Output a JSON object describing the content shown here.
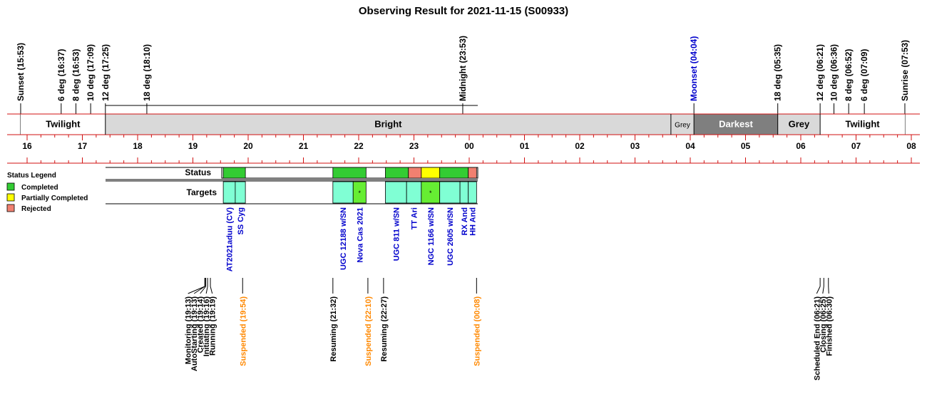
{
  "chart_data": {
    "type": "timeline",
    "title": "Observing Result for 2021-11-15 (S00933)",
    "axis": {
      "tick_labels": [
        "16",
        "17",
        "18",
        "19",
        "20",
        "21",
        "22",
        "23",
        "00",
        "01",
        "02",
        "03",
        "04",
        "05",
        "06",
        "07",
        "08"
      ],
      "start_hour": 16,
      "end_hour": 32
    },
    "events_top": [
      {
        "label": "Sunset (15:53)",
        "time": "15:53",
        "color": "#000000"
      },
      {
        "label": "6 deg (16:37)",
        "time": "16:37",
        "color": "#000000"
      },
      {
        "label": "8 deg (16:53)",
        "time": "16:53",
        "color": "#000000"
      },
      {
        "label": "10 deg (17:09)",
        "time": "17:09",
        "color": "#000000"
      },
      {
        "label": "12 deg (17:25)",
        "time": "17:25",
        "color": "#000000"
      },
      {
        "label": "18 deg (18:10)",
        "time": "18:10",
        "color": "#000000"
      },
      {
        "label": "Midnight (23:53)",
        "time": "23:53",
        "color": "#000000"
      },
      {
        "label": "Moonset (04:04)",
        "time": "04:04",
        "color": "#0000cc"
      },
      {
        "label": "18 deg (05:35)",
        "time": "05:35",
        "color": "#000000"
      },
      {
        "label": "12 deg (06:21)",
        "time": "06:21",
        "color": "#000000"
      },
      {
        "label": "10 deg (06:36)",
        "time": "06:36",
        "color": "#000000"
      },
      {
        "label": "8 deg (06:52)",
        "time": "06:52",
        "color": "#000000"
      },
      {
        "label": "6 deg (07:09)",
        "time": "07:09",
        "color": "#000000"
      },
      {
        "label": "Sunrise (07:53)",
        "time": "07:53",
        "color": "#000000"
      }
    ],
    "sky_bands": [
      {
        "label": "Twilight",
        "start": "15:53",
        "end": "17:25",
        "color": "#ffffff",
        "text_color": "#000000"
      },
      {
        "label": "Bright",
        "start": "17:25",
        "end": "03:39",
        "color": "#d9d9d9",
        "text_color": "#000000"
      },
      {
        "label": "Grey",
        "start": "03:39",
        "end": "04:04",
        "color": "#d9d9d9",
        "text_color": "#000000"
      },
      {
        "label": "Darkest",
        "start": "04:04",
        "end": "05:35",
        "color": "#7f7f7f",
        "text_color": "#ffffff"
      },
      {
        "label": "Grey",
        "start": "05:35",
        "end": "06:21",
        "color": "#d9d9d9",
        "text_color": "#000000"
      },
      {
        "label": "Twilight",
        "start": "06:21",
        "end": "07:53",
        "color": "#ffffff",
        "text_color": "#000000"
      }
    ],
    "row_labels": {
      "status": "Status",
      "targets": "Targets"
    },
    "legend": {
      "title": "Status Legend",
      "items": [
        {
          "label": "Completed",
          "color": "#33cc33"
        },
        {
          "label": "Partially Completed",
          "color": "#ffff00"
        },
        {
          "label": "Rejected",
          "color": "#f08070"
        }
      ]
    },
    "status": [
      {
        "start": "19:33",
        "end": "19:57",
        "status": "Completed"
      },
      {
        "start": "21:32",
        "end": "22:08",
        "status": "Completed"
      },
      {
        "start": "22:29",
        "end": "22:54",
        "status": "Completed"
      },
      {
        "start": "22:54",
        "end": "23:08",
        "status": "Rejected"
      },
      {
        "start": "23:08",
        "end": "23:28",
        "status": "Partially Completed"
      },
      {
        "start": "23:28",
        "end": "23:59",
        "status": "Completed"
      },
      {
        "start": "23:59",
        "end": "00:08",
        "status": "Rejected"
      }
    ],
    "targets": [
      {
        "name": "AT2021aduu (CV)",
        "start": "19:33",
        "end": "19:46",
        "color": "#80ffd4",
        "marker": ""
      },
      {
        "name": "SS Cyg",
        "start": "19:46",
        "end": "19:57",
        "color": "#80ffd4",
        "marker": ""
      },
      {
        "name": "UGC 12188 w/SN",
        "start": "21:32",
        "end": "21:54",
        "color": "#80ffd4",
        "marker": ""
      },
      {
        "name": "Nova Cas 2021",
        "start": "21:54",
        "end": "22:08",
        "color": "#66ee33",
        "marker": "*"
      },
      {
        "name": "UGC 811 w/SN",
        "start": "22:29",
        "end": "22:52",
        "color": "#80ffd4",
        "marker": ""
      },
      {
        "name": "TT Ari",
        "start": "22:52",
        "end": "23:08",
        "color": "#80ffd4",
        "marker": ""
      },
      {
        "name": "NGC 1166 w/SN",
        "start": "23:08",
        "end": "23:28",
        "color": "#66ee33",
        "marker": "*"
      },
      {
        "name": "UGC 2605 w/SN",
        "start": "23:28",
        "end": "23:50",
        "color": "#80ffd4",
        "marker": ""
      },
      {
        "name": "RX And",
        "start": "23:50",
        "end": "23:59",
        "color": "#80ffd4",
        "marker": ""
      },
      {
        "name": "HH And",
        "start": "23:59",
        "end": "00:08",
        "color": "#80ffd4",
        "marker": ""
      }
    ],
    "events_bottom": [
      {
        "label": "Monitoring (19:13)",
        "time": "19:13",
        "color": "#000000"
      },
      {
        "label": "AutoStarting (19:13)",
        "time": "19:13",
        "color": "#000000"
      },
      {
        "label": "Created (19:14)",
        "time": "19:14",
        "color": "#000000"
      },
      {
        "label": "Initiating (19:16)",
        "time": "19:16",
        "color": "#000000"
      },
      {
        "label": "Running (19:19)",
        "time": "19:19",
        "color": "#000000"
      },
      {
        "label": "Suspended (19:54)",
        "time": "19:54",
        "color": "#ff8800"
      },
      {
        "label": "Resuming (21:32)",
        "time": "21:32",
        "color": "#000000"
      },
      {
        "label": "Suspended (22:10)",
        "time": "22:10",
        "color": "#ff8800"
      },
      {
        "label": "Resuming (22:27)",
        "time": "22:27",
        "color": "#000000"
      },
      {
        "label": "Suspended (00:08)",
        "time": "00:08",
        "color": "#ff8800"
      },
      {
        "label": "Scheduled End (06:21)",
        "time": "06:21",
        "color": "#000000"
      },
      {
        "label": "Closing (06:25)",
        "time": "06:25",
        "color": "#000000"
      },
      {
        "label": "Finished (06:30)",
        "time": "06:30",
        "color": "#000000"
      }
    ]
  }
}
